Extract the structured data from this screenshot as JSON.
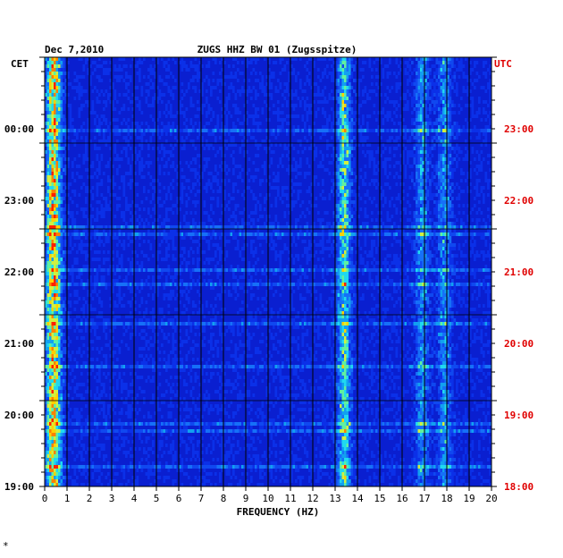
{
  "chart_data": {
    "type": "heatmap",
    "title": "ZUGS HHZ BW 01 (Zugsspitze)",
    "date": "Dec 7,2010",
    "xlabel": "FREQUENCY (HZ)",
    "left_axis_label": "CET",
    "right_axis_label": "UTC",
    "x_ticks": [
      "0",
      "1",
      "2",
      "3",
      "4",
      "5",
      "6",
      "7",
      "8",
      "9",
      "10",
      "11",
      "12",
      "13",
      "14",
      "15",
      "16",
      "17",
      "18",
      "19",
      "20"
    ],
    "xlim": [
      0,
      20
    ],
    "left_ticks": [
      "00:00",
      "23:00",
      "22:00",
      "21:00",
      "20:00",
      "19:00"
    ],
    "right_ticks": [
      "23:00",
      "22:00",
      "21:00",
      "20:00",
      "19:00",
      "18:00"
    ],
    "colors": {
      "background_low": "#0a1fd0",
      "high": "#ff2000",
      "right_axis_text": "#e00000",
      "left_axis_text": "#000000"
    },
    "energy_bands_hz": [
      {
        "center": 0.4,
        "level": "high"
      },
      {
        "center": 13.4,
        "level": "medium"
      },
      {
        "center": 16.9,
        "level": "low"
      },
      {
        "center": 17.9,
        "level": "low"
      }
    ]
  },
  "corner_mark": "*"
}
